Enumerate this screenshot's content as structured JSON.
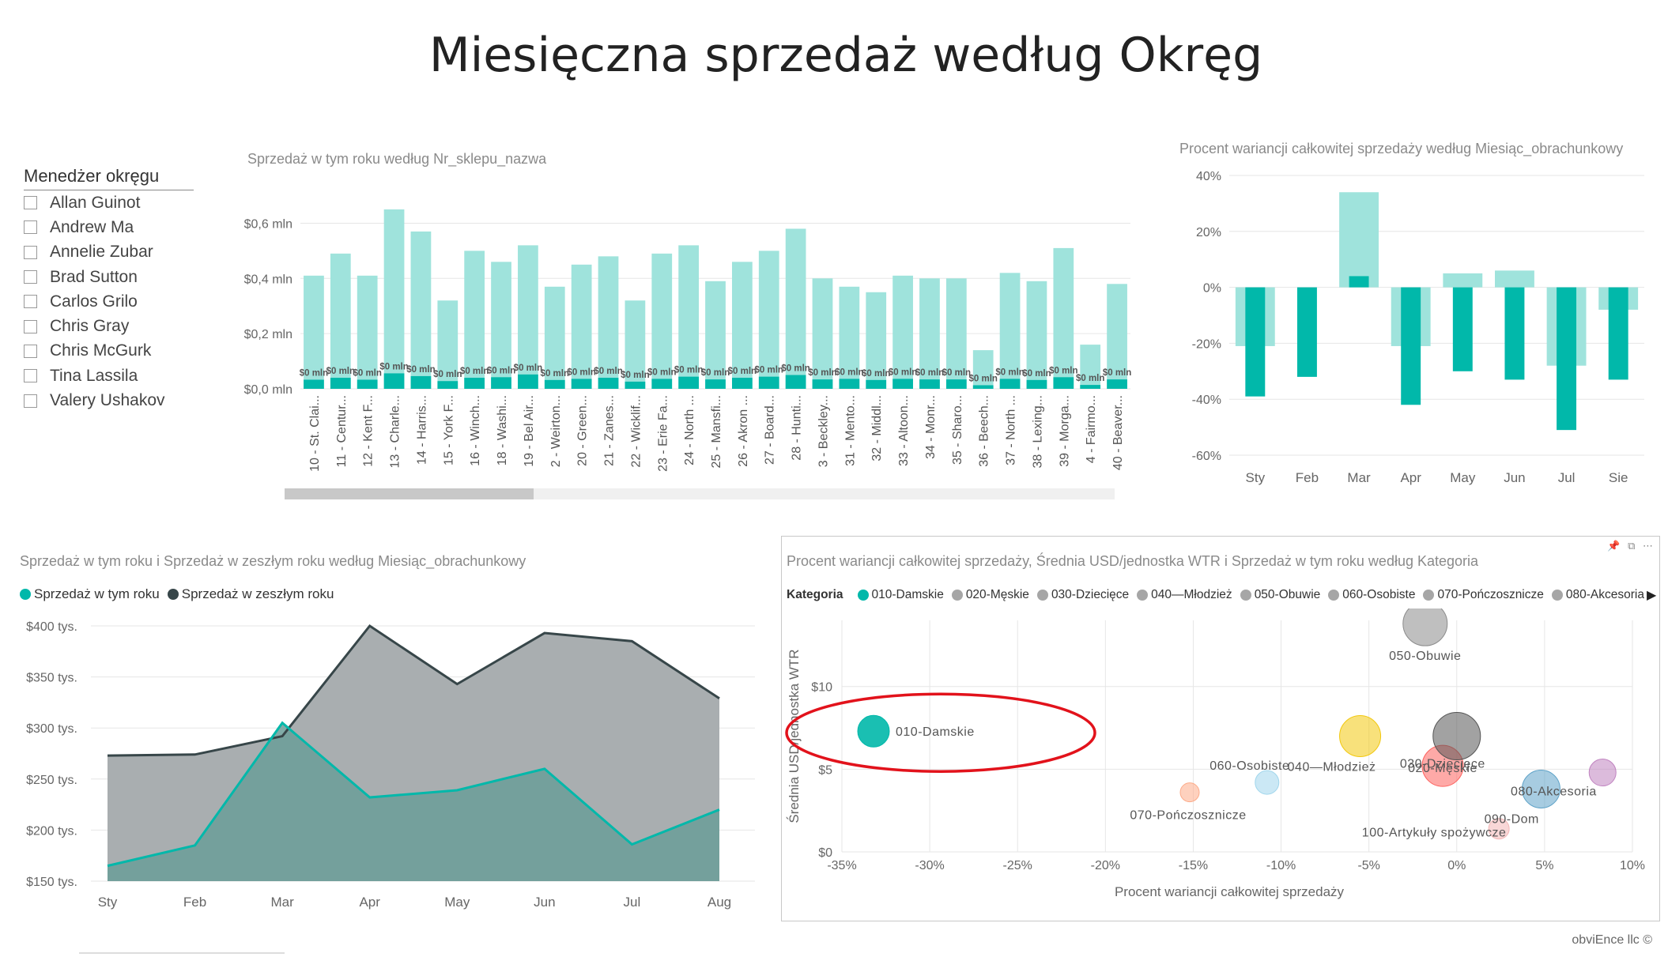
{
  "page": {
    "title": "Miesięczna sprzedaż według Okręg",
    "footer": "obviEnce llc ©"
  },
  "slicer": {
    "header": "Menedżer okręgu",
    "items": [
      "Allan Guinot",
      "Andrew Ma",
      "Annelie Zubar",
      "Brad Sutton",
      "Carlos Grilo",
      "Chris Gray",
      "Chris McGurk",
      "Tina Lassila",
      "Valery Ushakov"
    ]
  },
  "colors": {
    "teal": "#01b8aa",
    "teal_light": "#9fe3dc",
    "gray_area": "#a9aeb0",
    "dark_line": "#374649",
    "grid": "#e6e6e6"
  },
  "chart_data": [
    {
      "id": "stores",
      "type": "bar",
      "title": "Sprzedaż w tym roku według Nr_sklepu_nazwa",
      "categories": [
        "10 - St. Clai...",
        "11 - Centur...",
        "12 - Kent F...",
        "13 - Charle...",
        "14 - Harris...",
        "15 - York F...",
        "16 - Winch...",
        "18 - Washi...",
        "19 - Bel Air...",
        "2 - Weirton...",
        "20 - Green...",
        "21 - Zanes...",
        "22 - Wicklif...",
        "23 - Erie Fa...",
        "24 - North ...",
        "25 - Mansfi...",
        "26 - Akron ...",
        "27 - Board...",
        "28 - Hunti...",
        "3 - Beckley...",
        "31 - Mento...",
        "32 - Middl...",
        "33 - Altoon...",
        "34 - Monr...",
        "35 - Sharo...",
        "36 - Beech...",
        "37 - North ...",
        "38 - Lexing...",
        "39 - Morga...",
        "4 - Fairmo...",
        "40 - Beaver..."
      ],
      "series": [
        {
          "values": [
            0.41,
            0.49,
            0.41,
            0.65,
            0.57,
            0.32,
            0.5,
            0.46,
            0.52,
            0.37,
            0.45,
            0.48,
            0.32,
            0.49,
            0.52,
            0.39,
            0.46,
            0.5,
            0.58,
            0.4,
            0.37,
            0.35,
            0.41,
            0.4,
            0.4,
            0.14,
            0.42,
            0.39,
            0.51,
            0.16,
            0.38
          ]
        },
        {
          "values": [
            0.033,
            0.04,
            0.033,
            0.056,
            0.046,
            0.028,
            0.04,
            0.042,
            0.052,
            0.032,
            0.036,
            0.04,
            0.026,
            0.036,
            0.044,
            0.034,
            0.04,
            0.044,
            0.05,
            0.034,
            0.036,
            0.032,
            0.036,
            0.034,
            0.034,
            0.013,
            0.036,
            0.032,
            0.042,
            0.014,
            0.034
          ]
        }
      ],
      "data_label": "$0 mln",
      "yticks": [
        "$0,0 mln",
        "$0,2 mln",
        "$0,4 mln",
        "$0,6 mln"
      ],
      "ylim": [
        0,
        0.65
      ]
    },
    {
      "id": "variance",
      "type": "bar",
      "title": "Procent wariancji całkowitej sprzedaży według Miesiąc_obrachunkowy",
      "categories": [
        "Sty",
        "Feb",
        "Mar",
        "Apr",
        "May",
        "Jun",
        "Jul",
        "Sie"
      ],
      "series": [
        {
          "values": [
            -21,
            0,
            34,
            -21,
            5,
            6,
            -28,
            -8
          ]
        },
        {
          "values": [
            -39,
            -32,
            4,
            -42,
            -30,
            -33,
            -51,
            -33
          ]
        }
      ],
      "yticks": [
        "40%",
        "20%",
        "0%",
        "-20%",
        "-40%",
        "-60%"
      ],
      "ylim": [
        -60,
        40
      ]
    },
    {
      "id": "trend",
      "type": "area",
      "title": "Sprzedaż w tym roku i Sprzedaż w zeszłym roku według Miesiąc_obrachunkowy",
      "categories": [
        "Sty",
        "Feb",
        "Mar",
        "Apr",
        "May",
        "Jun",
        "Jul",
        "Aug"
      ],
      "series": [
        {
          "name": "Sprzedaż w tym roku",
          "values": [
            165,
            185,
            305,
            232,
            239,
            260,
            186,
            220
          ]
        },
        {
          "name": "Sprzedaż w zeszłym roku",
          "values": [
            273,
            274,
            292,
            400,
            343,
            393,
            385,
            329
          ]
        }
      ],
      "yticks": [
        "$400 tys.",
        "$350 tys.",
        "$300 tys.",
        "$250 tys.",
        "$200 tys.",
        "$150 tys."
      ],
      "ylim": [
        150,
        400
      ]
    },
    {
      "id": "scatter",
      "type": "scatter",
      "title": "Procent wariancji całkowitej sprzedaży, Średnia USD/jednostka WTR i Sprzedaż w tym roku według Kategoria",
      "xlabel": "Procent wariancji całkowitej sprzedaży",
      "ylabel": "Średnia USD/jednostka WTR",
      "xticks": [
        "-35%",
        "-30%",
        "-25%",
        "-20%",
        "-15%",
        "-10%",
        "-5%",
        "0%",
        "5%",
        "10%"
      ],
      "yticks": [
        "$0",
        "$5",
        "$10"
      ],
      "xlim": [
        -35,
        10
      ],
      "ylim": [
        0,
        14
      ],
      "legend_label": "Kategoria",
      "legend": [
        "010-Damskie",
        "020-Męskie",
        "030-Dziecięce",
        "040—Młodzież",
        "050-Obuwie",
        "060-Osobiste",
        "070-Pończosznicze",
        "080-Akcesoria"
      ],
      "points": [
        {
          "label": "010-Damskie",
          "x": -33.2,
          "y": 7.3,
          "size": 20,
          "color": "#01b8aa"
        },
        {
          "label": "020-Męskie",
          "x": -0.8,
          "y": 5.2,
          "size": 26,
          "color": "#fd625e"
        },
        {
          "label": "030-Dziecięce",
          "x": 0.0,
          "y": 7.0,
          "size": 30,
          "color": "#555555"
        },
        {
          "label": "040—Młodzież",
          "x": -5.5,
          "y": 7.0,
          "size": 26,
          "color": "#f2c80f"
        },
        {
          "label": "050-Obuwie",
          "x": -1.8,
          "y": 13.8,
          "size": 28,
          "color": "#8b8b8b"
        },
        {
          "label": "060-Osobiste",
          "x": -10.8,
          "y": 4.2,
          "size": 15,
          "color": "#a0d6ec"
        },
        {
          "label": "070-Pończosznicze",
          "x": -15.2,
          "y": 3.6,
          "size": 12,
          "color": "#fdab89"
        },
        {
          "label": "080-Akcesoria",
          "x": 4.8,
          "y": 3.8,
          "size": 24,
          "color": "#5fa3c8"
        },
        {
          "label": "090-Dom",
          "x": 8.3,
          "y": 4.8,
          "size": 17,
          "color": "#c083c0"
        },
        {
          "label": "100-Artykuły spożywcze",
          "x": 2.4,
          "y": 1.4,
          "size": 13,
          "color": "#f2b6b6"
        }
      ]
    }
  ]
}
